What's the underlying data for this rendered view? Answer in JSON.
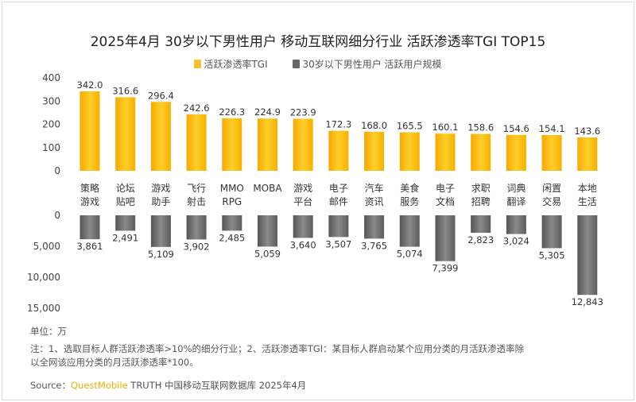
{
  "title": "2025年4月 30岁以下男性用户 移动互联网细分行业 活跃渗透率TGI TOP15",
  "legend": {
    "tgi": "活跃渗透率TGI",
    "users": "30岁以下男性用户 活跃用户规模"
  },
  "colors": {
    "tgi": "#fbc02d",
    "tgi_dark": "#f5a400",
    "users": "#6e6e6e",
    "users_light": "#9a9a9a"
  },
  "chart_data": [
    {
      "type": "bar",
      "series": [
        {
          "name": "活跃渗透率TGI",
          "values": [
            342.0,
            316.6,
            296.4,
            242.6,
            226.3,
            224.9,
            223.9,
            172.3,
            168.0,
            165.5,
            160.1,
            158.6,
            154.6,
            154.1,
            143.6
          ]
        }
      ],
      "categories": [
        [
          "策略",
          "游戏"
        ],
        [
          "论坛",
          "贴吧"
        ],
        [
          "游戏",
          "助手"
        ],
        [
          "飞行",
          "射击"
        ],
        [
          "MMO",
          "RPG"
        ],
        [
          "MOBA",
          ""
        ],
        [
          "游戏",
          "平台"
        ],
        [
          "电子",
          "邮件"
        ],
        [
          "汽车",
          "资讯"
        ],
        [
          "美食",
          "服务"
        ],
        [
          "电子",
          "文档"
        ],
        [
          "求职",
          "招聘"
        ],
        [
          "词典",
          "翻译"
        ],
        [
          "闲置",
          "交易"
        ],
        [
          "本地",
          "生活"
        ]
      ],
      "ylim": [
        0,
        400
      ],
      "yticks": [
        "0",
        "100",
        "200",
        "300",
        "400"
      ],
      "labels": [
        "342.0",
        "316.6",
        "296.4",
        "242.6",
        "226.3",
        "224.9",
        "223.9",
        "172.3",
        "168.0",
        "165.5",
        "160.1",
        "158.6",
        "154.6",
        "154.1",
        "143.6"
      ]
    },
    {
      "type": "bar",
      "orientation": "downward",
      "series": [
        {
          "name": "30岁以下男性用户 活跃用户规模",
          "values": [
            3861,
            2491,
            5109,
            3902,
            2485,
            5059,
            3640,
            3507,
            3765,
            5074,
            7399,
            2823,
            3024,
            5305,
            12843
          ]
        }
      ],
      "ylim": [
        0,
        15000
      ],
      "yticks": [
        "0",
        "5,000",
        "10,000",
        "15,000"
      ],
      "labels": [
        "3,861",
        "2,491",
        "5,109",
        "3,902",
        "2,485",
        "5,059",
        "3,640",
        "3,507",
        "3,765",
        "5,074",
        "7,399",
        "2,823",
        "3,024",
        "5,305",
        "12,843"
      ]
    }
  ],
  "unit": "单位：万",
  "note_line1": "注：1、选取目标人群活跃渗透率>10%的细分行业；2、活跃渗透率TGI：某目标人群启动某个应用分类的月活跃渗透率除",
  "note_line2": "以全网该应用分类的月活跃渗透率*100。",
  "source_prefix": "Source：",
  "source_brand": "QuestMobile",
  "source_rest": " TRUTH 中国移动互联网数据库 2025年4月"
}
